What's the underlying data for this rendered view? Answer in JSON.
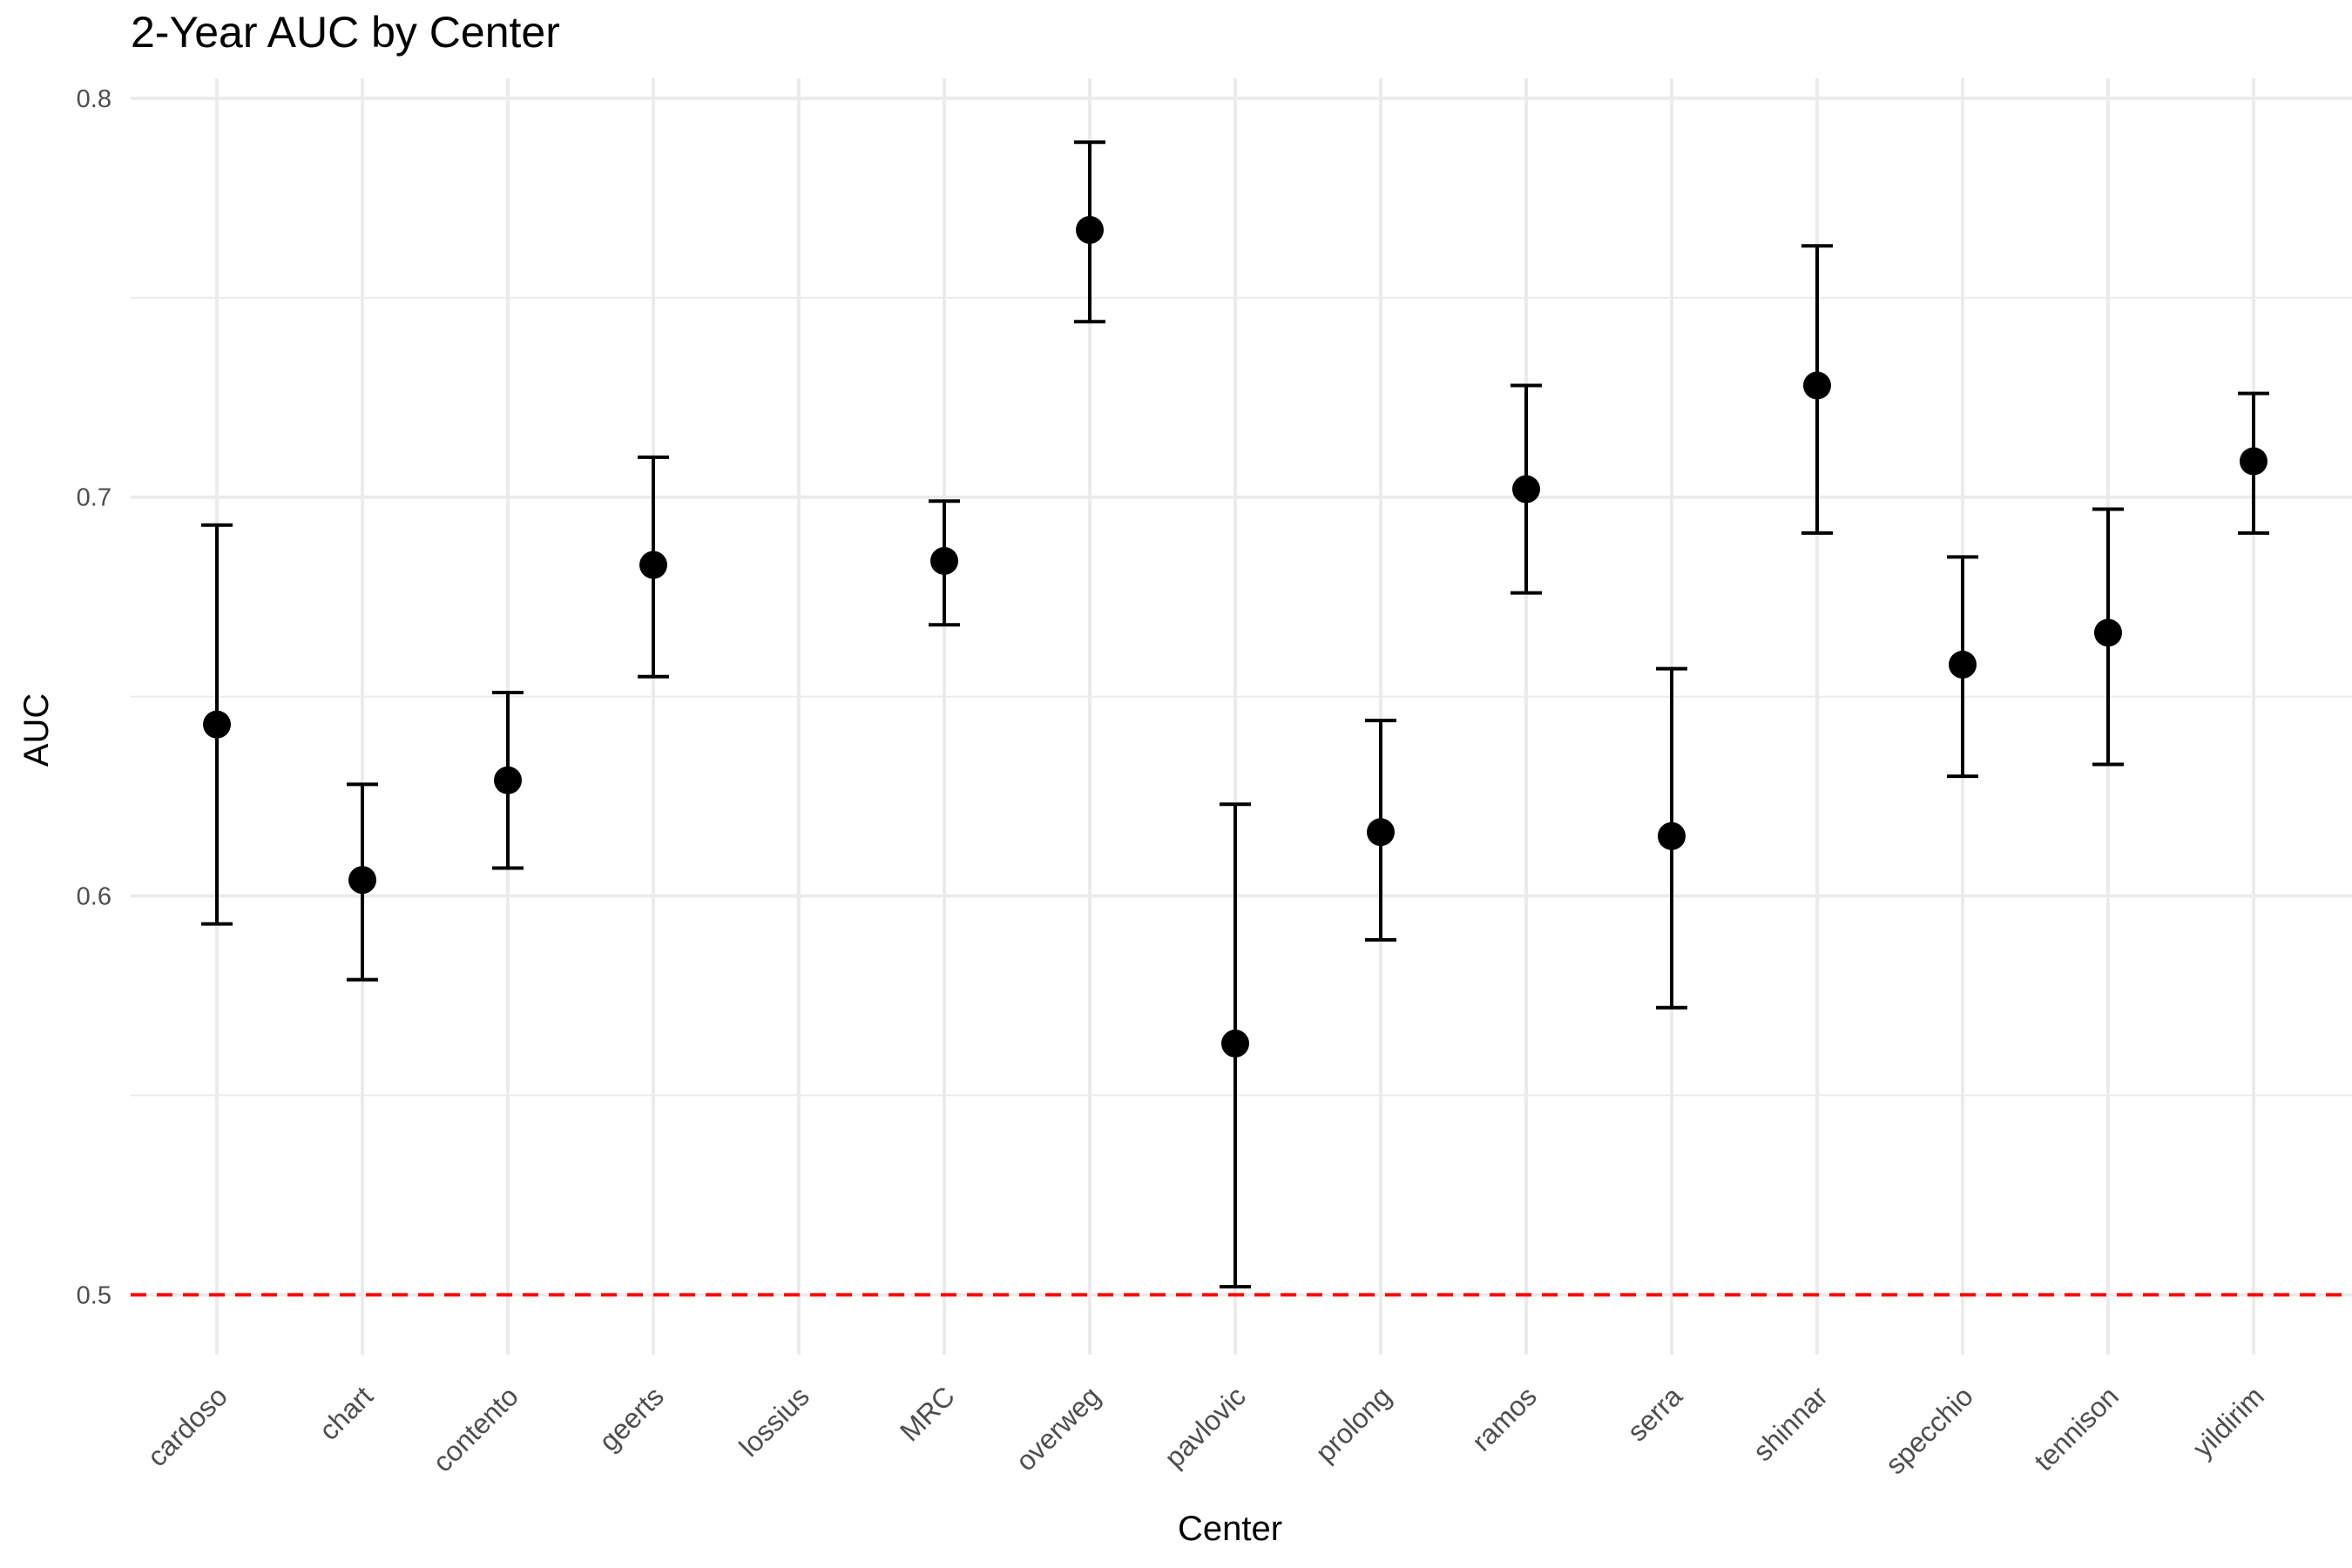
{
  "chart_data": {
    "type": "scatter",
    "title": "2-Year AUC by Center",
    "xlabel": "Center",
    "ylabel": "AUC",
    "categories": [
      "cardoso",
      "chart",
      "contento",
      "geerts",
      "lossius",
      "MRC",
      "overweg",
      "pavlovic",
      "prolong",
      "ramos",
      "serra",
      "shinnar",
      "specchio",
      "tennison",
      "yildirim"
    ],
    "series": [
      {
        "values": [
          0.643,
          0.604,
          0.629,
          0.683,
          null,
          0.684,
          0.767,
          0.563,
          0.616,
          0.702,
          0.615,
          0.728,
          0.658,
          0.666,
          0.709
        ],
        "lower": [
          0.593,
          0.579,
          0.607,
          0.655,
          null,
          0.668,
          0.744,
          0.502,
          0.589,
          0.676,
          0.572,
          0.691,
          0.63,
          0.633,
          0.691
        ],
        "upper": [
          0.693,
          0.628,
          0.651,
          0.71,
          null,
          0.699,
          0.789,
          0.623,
          0.644,
          0.728,
          0.657,
          0.763,
          0.685,
          0.697,
          0.726
        ]
      }
    ],
    "reference_line": {
      "y": 0.5,
      "color": "#ff0000",
      "style": "dashed"
    },
    "y_ticks": [
      "0.5",
      "0.6",
      "0.7",
      "0.8"
    ],
    "ylim": [
      0.485,
      0.805
    ],
    "grid": true,
    "legend": "none",
    "colors": {
      "point": "#000000",
      "grid": "#ebebeb",
      "reference": "#ff0000"
    }
  }
}
